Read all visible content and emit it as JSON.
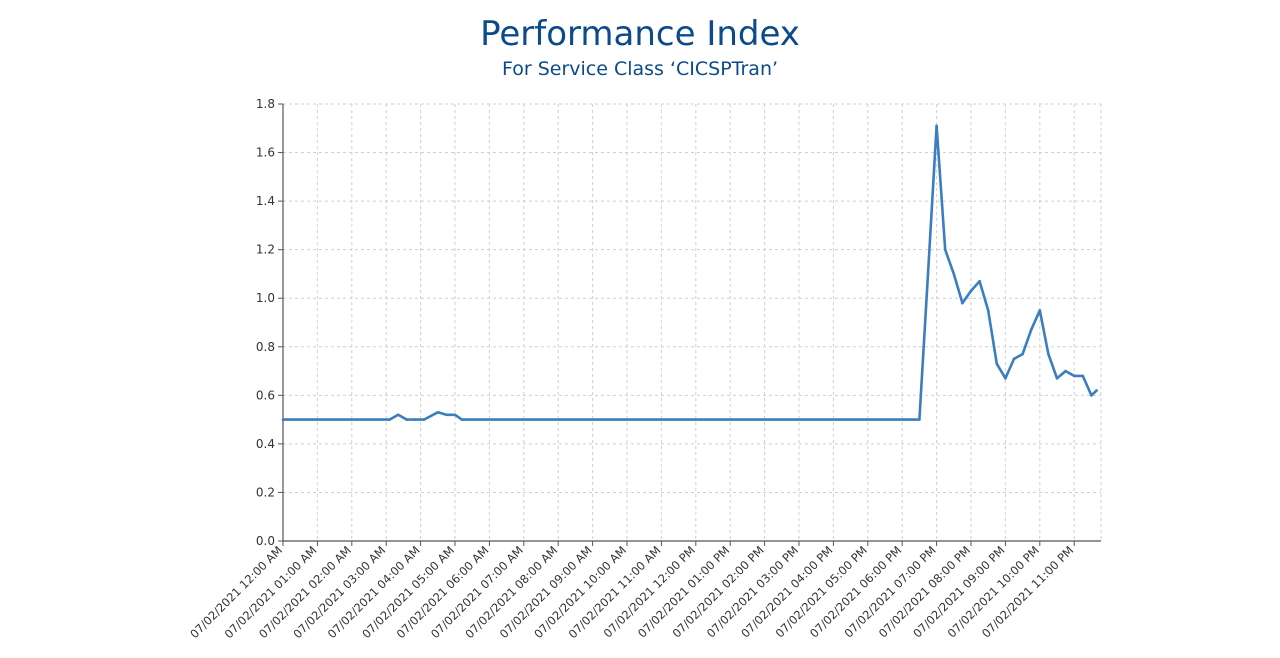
{
  "chart_data": {
    "type": "line",
    "title": "Performance Index",
    "subtitle": "For Service Class ‘CICSPTran’",
    "xlabel": "",
    "ylabel": "",
    "ylim": [
      0,
      1.8
    ],
    "yticks": [
      "0.0",
      "0.2",
      "0.4",
      "0.6",
      "0.8",
      "1.0",
      "1.2",
      "1.4",
      "1.6",
      "1.8"
    ],
    "xticks": [
      "07/02/2021 12:00 AM",
      "07/02/2021 01:00 AM",
      "07/02/2021 02:00 AM",
      "07/02/2021 03:00 AM",
      "07/02/2021 04:00 AM",
      "07/02/2021 05:00 AM",
      "07/02/2021 06:00 AM",
      "07/02/2021 07:00 AM",
      "07/02/2021 08:00 AM",
      "07/02/2021 09:00 AM",
      "07/02/2021 10:00 AM",
      "07/02/2021 11:00 AM",
      "07/02/2021 12:00 PM",
      "07/02/2021 01:00 PM",
      "07/02/2021 02:00 PM",
      "07/02/2021 03:00 PM",
      "07/02/2021 04:00 PM",
      "07/02/2021 05:00 PM",
      "07/02/2021 06:00 PM",
      "07/02/2021 07:00 PM",
      "07/02/2021 08:00 PM",
      "07/02/2021 09:00 PM",
      "07/02/2021 10:00 PM",
      "07/02/2021 11:00 PM"
    ],
    "grid": true,
    "line_color": "#3a7ebf",
    "series": [
      {
        "x": [
          0,
          3.1,
          3.35,
          3.6,
          3.85,
          4.1,
          4.5,
          4.75,
          5.0,
          5.2,
          18.5,
          18.75,
          19.0,
          19.25,
          19.5,
          19.75,
          20.0,
          20.25,
          20.5,
          20.75,
          21.0,
          21.25,
          21.5,
          21.75,
          22.0,
          22.25,
          22.5,
          22.75,
          23.0,
          23.25,
          23.5,
          23.65
        ],
        "values": [
          0.5,
          0.5,
          0.52,
          0.5,
          0.5,
          0.5,
          0.53,
          0.52,
          0.52,
          0.5,
          0.5,
          1.1,
          1.71,
          1.2,
          1.1,
          0.98,
          1.03,
          1.07,
          0.95,
          0.73,
          0.67,
          0.75,
          0.77,
          0.87,
          0.95,
          0.77,
          0.67,
          0.7,
          0.68,
          0.68,
          0.6,
          0.62
        ]
      }
    ]
  }
}
